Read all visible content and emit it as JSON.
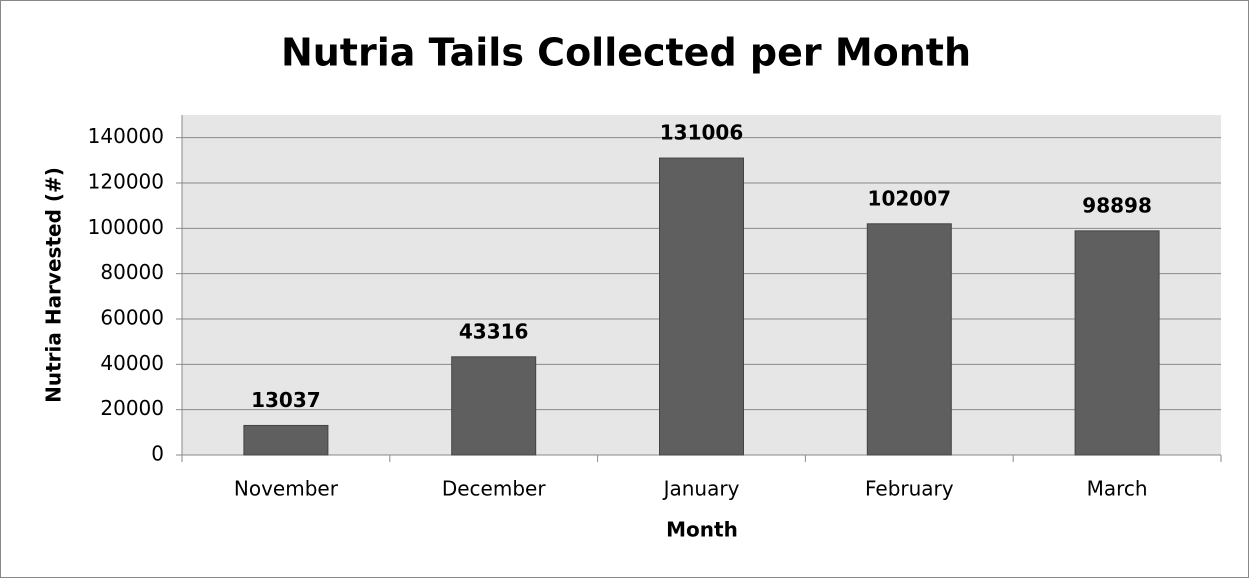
{
  "chart_data": {
    "type": "bar",
    "title": "Nutria Tails Collected per Month",
    "x_label": "Month",
    "y_label": "Nutria Harvested (#)",
    "categories": [
      "November",
      "December",
      "January",
      "February",
      "March"
    ],
    "values": [
      13037,
      43316,
      131006,
      102007,
      98898
    ],
    "color": "#5f5f5f",
    "ylim": [
      0,
      150000
    ],
    "yticks": [
      0,
      20000,
      40000,
      60000,
      80000,
      100000,
      120000,
      140000
    ],
    "grid": true
  }
}
